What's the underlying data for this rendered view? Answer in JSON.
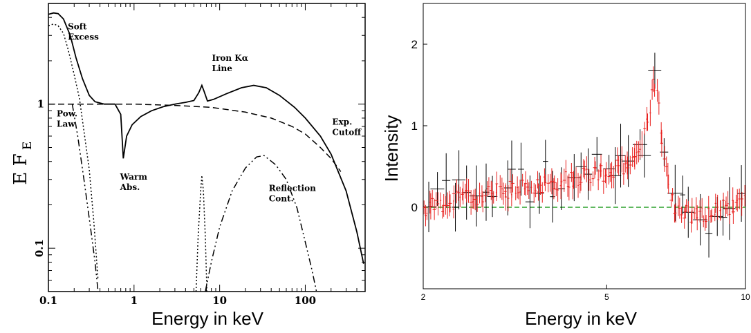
{
  "chart_data": [
    {
      "type": "line",
      "xlabel": "Energy in keV",
      "ylabel": "E F",
      "ylabel_sub": "E",
      "x_scale": "log",
      "y_scale": "log",
      "xlim": [
        0.1,
        500
      ],
      "ylim": [
        0.05,
        5
      ],
      "x_ticks": [
        {
          "v": 0.1,
          "label": "0.1"
        },
        {
          "v": 1,
          "label": "1"
        },
        {
          "v": 10,
          "label": "10"
        },
        {
          "v": 100,
          "label": "100"
        }
      ],
      "y_ticks": [
        {
          "v": 1,
          "label": "1"
        },
        {
          "v": 0.1,
          "label": "0.1"
        }
      ],
      "annotations": [
        {
          "id": "soft",
          "lines": [
            "Soft",
            "Excess"
          ],
          "x": 0.135,
          "y": 3.3
        },
        {
          "id": "iron",
          "lines": [
            "Iron Kα",
            "Line"
          ],
          "x": 6.5,
          "y": 2.0
        },
        {
          "id": "pow",
          "lines": [
            "Pow.",
            "Law"
          ],
          "x": 0.1,
          "y": 0.82
        },
        {
          "id": "warm",
          "lines": [
            "Warm",
            "Abs."
          ],
          "x": 0.55,
          "y": 0.3
        },
        {
          "id": "reflection",
          "lines": [
            "Reflection",
            "Cont."
          ],
          "x": 30,
          "y": 0.25
        },
        {
          "id": "exp",
          "lines": [
            "Exp.",
            "Cutoff"
          ],
          "x": 165,
          "y": 0.72
        }
      ],
      "series": [
        {
          "style": "solid",
          "points": [
            [
              0.1,
              4.2
            ],
            [
              0.115,
              4.3
            ],
            [
              0.13,
              4.25
            ],
            [
              0.15,
              3.9
            ],
            [
              0.18,
              3.0
            ],
            [
              0.21,
              2.1
            ],
            [
              0.25,
              1.5
            ],
            [
              0.3,
              1.15
            ],
            [
              0.35,
              1.04
            ],
            [
              0.45,
              1.0
            ],
            [
              0.6,
              1.0
            ],
            [
              0.7,
              0.85
            ],
            [
              0.75,
              0.42
            ],
            [
              0.82,
              0.6
            ],
            [
              0.95,
              0.72
            ],
            [
              1.2,
              0.82
            ],
            [
              1.6,
              0.9
            ],
            [
              2.2,
              0.96
            ],
            [
              3,
              1.0
            ],
            [
              4,
              1.03
            ],
            [
              5,
              1.06
            ],
            [
              5.7,
              1.2
            ],
            [
              6.2,
              1.35
            ],
            [
              6.6,
              1.22
            ],
            [
              7.2,
              1.05
            ],
            [
              8.5,
              1.08
            ],
            [
              12,
              1.18
            ],
            [
              18,
              1.3
            ],
            [
              25,
              1.35
            ],
            [
              35,
              1.3
            ],
            [
              50,
              1.15
            ],
            [
              75,
              0.95
            ],
            [
              100,
              0.8
            ],
            [
              150,
              0.6
            ],
            [
              200,
              0.45
            ],
            [
              300,
              0.25
            ],
            [
              400,
              0.13
            ],
            [
              480,
              0.078
            ]
          ]
        },
        {
          "style": "dashed",
          "points": [
            [
              0.1,
              1.0
            ],
            [
              1,
              1.0
            ],
            [
              3,
              0.98
            ],
            [
              8,
              0.95
            ],
            [
              20,
              0.88
            ],
            [
              40,
              0.8
            ],
            [
              70,
              0.7
            ],
            [
              100,
              0.62
            ],
            [
              150,
              0.5
            ],
            [
              200,
              0.42
            ],
            [
              260,
              0.34
            ]
          ]
        },
        {
          "style": "dotted",
          "points": [
            [
              0.1,
              3.5
            ],
            [
              0.115,
              3.6
            ],
            [
              0.13,
              3.5
            ],
            [
              0.15,
              3.1
            ],
            [
              0.17,
              2.4
            ],
            [
              0.2,
              1.6
            ],
            [
              0.23,
              1.1
            ],
            [
              0.26,
              0.65
            ],
            [
              0.3,
              0.35
            ],
            [
              0.34,
              0.15
            ],
            [
              0.38,
              0.06
            ]
          ]
        },
        {
          "style": "dashdot",
          "points": [
            [
              0.19,
              1.0
            ],
            [
              0.22,
              0.6
            ],
            [
              0.26,
              0.3
            ],
            [
              0.31,
              0.14
            ],
            [
              0.35,
              0.08
            ],
            [
              0.38,
              0.05
            ]
          ]
        },
        {
          "style": "dotted",
          "points": [
            [
              5.3,
              0.05
            ],
            [
              5.6,
              0.12
            ],
            [
              6.0,
              0.25
            ],
            [
              6.2,
              0.32
            ],
            [
              6.45,
              0.25
            ],
            [
              6.8,
              0.12
            ],
            [
              7.1,
              0.05
            ]
          ]
        },
        {
          "style": "dashdot",
          "points": [
            [
              6.8,
              0.05
            ],
            [
              8,
              0.08
            ],
            [
              10,
              0.14
            ],
            [
              14,
              0.25
            ],
            [
              20,
              0.36
            ],
            [
              27,
              0.43
            ],
            [
              33,
              0.44
            ],
            [
              45,
              0.38
            ],
            [
              60,
              0.3
            ],
            [
              80,
              0.19
            ],
            [
              100,
              0.11
            ],
            [
              120,
              0.07
            ],
            [
              135,
              0.05
            ]
          ]
        }
      ]
    },
    {
      "type": "scatter",
      "xlabel": "Energy in keV",
      "ylabel": "Intensity",
      "x_scale": "log",
      "xlim": [
        2,
        10
      ],
      "ylim": [
        -1,
        2.5
      ],
      "x_ticks": [
        {
          "v": 2,
          "label": "2"
        },
        {
          "v": 5,
          "label": "5"
        },
        {
          "v": 10,
          "label": "10"
        }
      ],
      "y_ticks": [
        {
          "v": 2,
          "label": "2"
        },
        {
          "v": 1,
          "label": "1"
        },
        {
          "v": 0,
          "label": "0"
        }
      ],
      "reference_line": {
        "y": 0,
        "color": "#2ca02c",
        "style": "dashed"
      },
      "colors": {
        "red": "#e8201e",
        "black": "#000000"
      },
      "red_profile": [
        [
          2,
          0.0
        ],
        [
          2.5,
          0.12
        ],
        [
          3,
          0.2
        ],
        [
          3.5,
          0.27
        ],
        [
          4,
          0.33
        ],
        [
          4.5,
          0.4
        ],
        [
          5,
          0.43
        ],
        [
          5.5,
          0.5
        ],
        [
          5.8,
          0.6
        ],
        [
          6.0,
          0.8
        ],
        [
          6.2,
          1.2
        ],
        [
          6.3,
          1.45
        ],
        [
          6.4,
          1.6
        ],
        [
          6.5,
          1.3
        ],
        [
          6.6,
          0.8
        ],
        [
          6.8,
          0.3
        ],
        [
          7.0,
          0.0
        ],
        [
          7.5,
          -0.08
        ],
        [
          8,
          -0.1
        ],
        [
          9,
          0.0
        ],
        [
          10,
          0.05
        ]
      ],
      "black_profile": [
        [
          2,
          0.1
        ],
        [
          2.5,
          0.2
        ],
        [
          3,
          0.25
        ],
        [
          3.5,
          0.3
        ],
        [
          4,
          0.35
        ],
        [
          4.5,
          0.4
        ],
        [
          5,
          0.4
        ],
        [
          5.5,
          0.5
        ],
        [
          6.0,
          0.7
        ],
        [
          6.3,
          1.3
        ],
        [
          6.4,
          1.6
        ],
        [
          6.5,
          1.2
        ],
        [
          6.8,
          0.3
        ],
        [
          7,
          0.0
        ],
        [
          8,
          -0.15
        ],
        [
          9,
          -0.05
        ],
        [
          10,
          0.0
        ]
      ],
      "red_count": 180,
      "black_count": 38
    }
  ]
}
